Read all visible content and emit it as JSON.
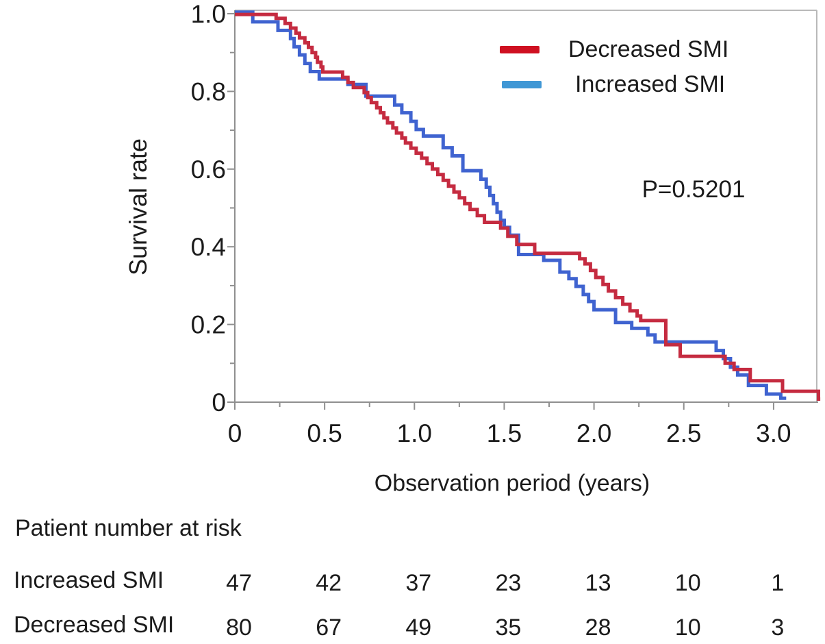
{
  "figure": {
    "p_value_label": "P=0.5201"
  },
  "chart_data": {
    "type": "line",
    "subtype": "kaplan-meier-step",
    "xlabel": "Observation period (years)",
    "ylabel": "Survival rate",
    "xlim": [
      0,
      3.25
    ],
    "ylim": [
      0,
      1.0
    ],
    "grid": false,
    "legend_position": "upper right",
    "annotation": {
      "text": "P=0.5201"
    },
    "x_ticks": [
      0,
      0.5,
      1.0,
      1.5,
      2.0,
      2.5,
      3.0
    ],
    "x_tick_labels": [
      "0",
      "0.5",
      "1.0",
      "1.5",
      "2.0",
      "2.5",
      "3.0"
    ],
    "x_minor_ticks": [
      0.25,
      0.75,
      1.25,
      1.75,
      2.25,
      2.75,
      3.25
    ],
    "y_ticks": [
      1.0,
      0.8,
      0.6,
      0.4,
      0.2,
      0
    ],
    "y_tick_labels": [
      "1.0",
      "0.8",
      "0.6",
      "0.4",
      "0.2",
      "0"
    ],
    "y_minor_ticks": [
      0.9,
      0.7,
      0.5,
      0.3,
      0.1
    ],
    "series": [
      {
        "name": "Increased SMI",
        "color": "#3f63d0",
        "legend_color": "#3f97d5",
        "end_time": 3.07,
        "points": [
          [
            0.0,
            1.004
          ],
          [
            0.1,
            0.979
          ],
          [
            0.24,
            0.957
          ],
          [
            0.31,
            0.936
          ],
          [
            0.33,
            0.915
          ],
          [
            0.36,
            0.894
          ],
          [
            0.39,
            0.872
          ],
          [
            0.42,
            0.851
          ],
          [
            0.47,
            0.832
          ],
          [
            0.63,
            0.818
          ],
          [
            0.73,
            0.788
          ],
          [
            0.89,
            0.765
          ],
          [
            0.93,
            0.745
          ],
          [
            0.98,
            0.723
          ],
          [
            1.01,
            0.702
          ],
          [
            1.05,
            0.685
          ],
          [
            1.16,
            0.655
          ],
          [
            1.21,
            0.634
          ],
          [
            1.27,
            0.596
          ],
          [
            1.37,
            0.574
          ],
          [
            1.4,
            0.553
          ],
          [
            1.42,
            0.532
          ],
          [
            1.44,
            0.511
          ],
          [
            1.46,
            0.489
          ],
          [
            1.48,
            0.468
          ],
          [
            1.5,
            0.45
          ],
          [
            1.53,
            0.43
          ],
          [
            1.58,
            0.38
          ],
          [
            1.72,
            0.365
          ],
          [
            1.81,
            0.335
          ],
          [
            1.86,
            0.318
          ],
          [
            1.9,
            0.298
          ],
          [
            1.94,
            0.277
          ],
          [
            1.97,
            0.259
          ],
          [
            2.0,
            0.238
          ],
          [
            2.12,
            0.205
          ],
          [
            2.21,
            0.19
          ],
          [
            2.3,
            0.173
          ],
          [
            2.34,
            0.155
          ],
          [
            2.68,
            0.133
          ],
          [
            2.72,
            0.112
          ],
          [
            2.76,
            0.09
          ],
          [
            2.8,
            0.07
          ],
          [
            2.86,
            0.043
          ],
          [
            2.96,
            0.021
          ],
          [
            3.04,
            0.01
          ]
        ]
      },
      {
        "name": "Decreased SMI",
        "color": "#c52b40",
        "legend_color": "#cf1021",
        "end_time": 3.26,
        "points": [
          [
            0.0,
            0.998
          ],
          [
            0.23,
            0.988
          ],
          [
            0.28,
            0.975
          ],
          [
            0.31,
            0.963
          ],
          [
            0.34,
            0.95
          ],
          [
            0.36,
            0.938
          ],
          [
            0.39,
            0.925
          ],
          [
            0.41,
            0.913
          ],
          [
            0.43,
            0.9
          ],
          [
            0.45,
            0.888
          ],
          [
            0.46,
            0.875
          ],
          [
            0.48,
            0.863
          ],
          [
            0.49,
            0.85
          ],
          [
            0.6,
            0.836
          ],
          [
            0.63,
            0.823
          ],
          [
            0.66,
            0.81
          ],
          [
            0.72,
            0.797
          ],
          [
            0.74,
            0.784
          ],
          [
            0.76,
            0.771
          ],
          [
            0.79,
            0.758
          ],
          [
            0.81,
            0.745
          ],
          [
            0.83,
            0.732
          ],
          [
            0.85,
            0.719
          ],
          [
            0.88,
            0.706
          ],
          [
            0.9,
            0.693
          ],
          [
            0.93,
            0.68
          ],
          [
            0.95,
            0.667
          ],
          [
            0.98,
            0.654
          ],
          [
            1.01,
            0.641
          ],
          [
            1.04,
            0.628
          ],
          [
            1.07,
            0.614
          ],
          [
            1.1,
            0.6
          ],
          [
            1.13,
            0.586
          ],
          [
            1.16,
            0.571
          ],
          [
            1.19,
            0.556
          ],
          [
            1.22,
            0.541
          ],
          [
            1.25,
            0.526
          ],
          [
            1.28,
            0.511
          ],
          [
            1.31,
            0.496
          ],
          [
            1.35,
            0.48
          ],
          [
            1.39,
            0.463
          ],
          [
            1.48,
            0.448
          ],
          [
            1.52,
            0.427
          ],
          [
            1.57,
            0.406
          ],
          [
            1.67,
            0.383
          ],
          [
            1.92,
            0.369
          ],
          [
            1.95,
            0.356
          ],
          [
            1.98,
            0.339
          ],
          [
            2.01,
            0.321
          ],
          [
            2.05,
            0.303
          ],
          [
            2.08,
            0.286
          ],
          [
            2.12,
            0.269
          ],
          [
            2.16,
            0.252
          ],
          [
            2.2,
            0.235
          ],
          [
            2.24,
            0.222
          ],
          [
            2.26,
            0.21
          ],
          [
            2.4,
            0.148
          ],
          [
            2.48,
            0.118
          ],
          [
            2.73,
            0.1
          ],
          [
            2.78,
            0.084
          ],
          [
            2.87,
            0.055
          ],
          [
            3.05,
            0.028
          ],
          [
            3.25,
            0.008
          ]
        ]
      }
    ]
  },
  "legend": {
    "items": [
      {
        "label": "Decreased SMI",
        "series_index": 1
      },
      {
        "label": "Increased SMI",
        "series_index": 0
      }
    ]
  },
  "risk_table": {
    "title": "Patient number at risk",
    "times": [
      0,
      0.5,
      1.0,
      1.5,
      2.0,
      2.5,
      3.0
    ],
    "rows": [
      {
        "label": "Increased SMI",
        "values": [
          47,
          42,
          37,
          23,
          13,
          10,
          1
        ]
      },
      {
        "label": "Decreased SMI",
        "values": [
          80,
          67,
          49,
          35,
          28,
          10,
          3
        ]
      }
    ]
  }
}
